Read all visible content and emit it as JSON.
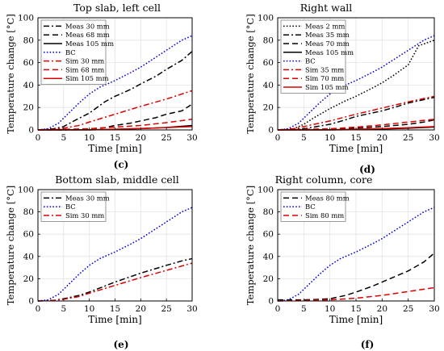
{
  "chart_data": [
    {
      "type": "line",
      "title": "Top slab, left cell",
      "subcaption": "(c)",
      "xlabel": "Time [min]",
      "ylabel": "Temperature change [°C]",
      "xlim": [
        0,
        30
      ],
      "ylim": [
        0,
        100
      ],
      "xticks": [
        "0",
        "5",
        "10",
        "15",
        "20",
        "25",
        "30"
      ],
      "yticks": [
        "0",
        "20",
        "40",
        "60",
        "80",
        "100"
      ],
      "grid": true,
      "legend": "top-left",
      "series": [
        {
          "name": "Meas 30 mm",
          "style": "dashdot",
          "color": "#000000",
          "x": [
            0,
            3,
            5,
            7,
            10,
            13,
            15,
            18,
            20,
            23,
            25,
            28,
            30
          ],
          "y": [
            0,
            1,
            3,
            8,
            15,
            25,
            30,
            36,
            41,
            48,
            54,
            62,
            70
          ]
        },
        {
          "name": "Meas 68 mm",
          "style": "dashed",
          "color": "#000000",
          "x": [
            0,
            5,
            10,
            13,
            15,
            18,
            20,
            23,
            25,
            28,
            30
          ],
          "y": [
            0,
            0,
            1,
            2,
            4,
            6,
            8,
            11,
            14,
            17,
            23
          ]
        },
        {
          "name": "Meas 105 mm",
          "style": "solid",
          "color": "#000000",
          "x": [
            0,
            10,
            15,
            20,
            25,
            28,
            30
          ],
          "y": [
            0,
            0,
            0.5,
            1.2,
            2.2,
            3.2,
            4
          ]
        },
        {
          "name": "BC",
          "style": "dotted",
          "color": "#0000dd",
          "x": [
            0,
            2,
            4,
            6,
            8,
            10,
            12,
            15,
            18,
            20,
            22,
            25,
            28,
            30
          ],
          "y": [
            0,
            1,
            6,
            15,
            24,
            32,
            38,
            44,
            51,
            56,
            62,
            71,
            80,
            84
          ]
        },
        {
          "name": "Sim 30 mm",
          "style": "dashdot",
          "color": "#dd0000",
          "x": [
            0,
            3,
            5,
            8,
            10,
            15,
            20,
            25,
            30
          ],
          "y": [
            0,
            0.5,
            1.5,
            4,
            7,
            14,
            21,
            27.5,
            35
          ]
        },
        {
          "name": "Sim 68 mm",
          "style": "dashed",
          "color": "#dd0000",
          "x": [
            0,
            10,
            15,
            20,
            25,
            30
          ],
          "y": [
            0,
            1,
            2.5,
            4,
            6.5,
            9.5
          ]
        },
        {
          "name": "Sim 105 mm",
          "style": "solid",
          "color": "#dd0000",
          "x": [
            0,
            10,
            15,
            20,
            25,
            30
          ],
          "y": [
            0,
            0.2,
            0.6,
            1.3,
            2.1,
            3
          ]
        }
      ]
    },
    {
      "type": "line",
      "title": "Right wall",
      "subcaption": "(d)",
      "xlabel": "Time [min]",
      "ylabel": "Temperature change [°C]",
      "xlim": [
        0,
        30
      ],
      "ylim": [
        0,
        100
      ],
      "xticks": [
        "0",
        "5",
        "10",
        "15",
        "20",
        "25",
        "30"
      ],
      "yticks": [
        "0",
        "20",
        "40",
        "60",
        "80",
        "100"
      ],
      "grid": true,
      "legend": "top-left",
      "series": [
        {
          "name": "Meas 2 mm",
          "style": "dotted",
          "color": "#000000",
          "x": [
            0,
            3,
            5,
            7,
            10,
            13,
            15,
            18,
            20,
            22,
            25,
            27,
            30
          ],
          "y": [
            0,
            1,
            5,
            11,
            19,
            26,
            30,
            37,
            42,
            48,
            58,
            75,
            80
          ]
        },
        {
          "name": "Meas 35 mm",
          "style": "dashdot",
          "color": "#000000",
          "x": [
            0,
            5,
            10,
            13,
            15,
            18,
            20,
            23,
            25,
            28,
            30
          ],
          "y": [
            0,
            1,
            5,
            9,
            12,
            15,
            17,
            21,
            24,
            27,
            29
          ]
        },
        {
          "name": "Meas 70 mm",
          "style": "dashed",
          "color": "#000000",
          "x": [
            0,
            10,
            15,
            20,
            25,
            28,
            30
          ],
          "y": [
            0,
            0.5,
            1.5,
            3,
            5,
            7,
            9
          ]
        },
        {
          "name": "Meas 105 mm",
          "style": "solid",
          "color": "#000000",
          "x": [
            0,
            10,
            15,
            20,
            25,
            30
          ],
          "y": [
            0,
            0,
            0.3,
            0.8,
            1.5,
            2.5
          ]
        },
        {
          "name": "BC",
          "style": "dotted",
          "color": "#0000dd",
          "x": [
            0,
            2,
            4,
            6,
            8,
            10,
            12,
            15,
            18,
            20,
            22,
            25,
            28,
            30
          ],
          "y": [
            0,
            1,
            6,
            15,
            24,
            32,
            38,
            44,
            51,
            56,
            62,
            71,
            80,
            84
          ]
        },
        {
          "name": "Sim 35 mm",
          "style": "dashdot",
          "color": "#dd0000",
          "x": [
            0,
            3,
            5,
            10,
            15,
            20,
            25,
            30
          ],
          "y": [
            0,
            1,
            3,
            8,
            14,
            19.5,
            25,
            30
          ]
        },
        {
          "name": "Sim 70 mm",
          "style": "dashed",
          "color": "#dd0000",
          "x": [
            0,
            10,
            15,
            20,
            25,
            30
          ],
          "y": [
            0,
            1,
            2.5,
            4.5,
            7,
            9.5
          ]
        },
        {
          "name": "Sim 105 mm",
          "style": "solid",
          "color": "#dd0000",
          "x": [
            0,
            10,
            15,
            20,
            25,
            30
          ],
          "y": [
            0,
            0.2,
            0.6,
            1.2,
            2,
            3
          ]
        }
      ]
    },
    {
      "type": "line",
      "title": "Bottom slab, middle cell",
      "subcaption": "(e)",
      "xlabel": "Time [min]",
      "ylabel": "Temperature change [°C]",
      "xlim": [
        0,
        30
      ],
      "ylim": [
        0,
        100
      ],
      "xticks": [
        "0",
        "5",
        "10",
        "15",
        "20",
        "25",
        "30"
      ],
      "yticks": [
        "0",
        "20",
        "40",
        "60",
        "80",
        "100"
      ],
      "grid": true,
      "legend": "top-left",
      "series": [
        {
          "name": "Meas 30 mm",
          "style": "dashdot",
          "color": "#000000",
          "x": [
            0,
            3,
            5,
            8,
            10,
            15,
            20,
            25,
            28,
            30
          ],
          "y": [
            0,
            0.5,
            2,
            5,
            8,
            17,
            25,
            32,
            36,
            38
          ]
        },
        {
          "name": "BC",
          "style": "dotted",
          "color": "#0000dd",
          "x": [
            0,
            2,
            4,
            6,
            8,
            10,
            12,
            15,
            18,
            20,
            22,
            25,
            28,
            30
          ],
          "y": [
            0,
            1,
            6,
            15,
            24,
            32,
            38,
            44,
            51,
            56,
            62,
            71,
            80,
            84
          ]
        },
        {
          "name": "Sim 30 mm",
          "style": "dashdot",
          "color": "#dd0000",
          "x": [
            0,
            3,
            5,
            8,
            10,
            15,
            20,
            25,
            30
          ],
          "y": [
            0,
            0.5,
            1.5,
            4,
            7,
            14,
            21,
            27.5,
            34
          ]
        }
      ]
    },
    {
      "type": "line",
      "title": "Right column, core",
      "subcaption": "(f)",
      "xlabel": "Time [min]",
      "ylabel": "Temperature change [°C]",
      "xlim": [
        0,
        30
      ],
      "ylim": [
        0,
        100
      ],
      "xticks": [
        "0",
        "5",
        "10",
        "15",
        "20",
        "25",
        "30"
      ],
      "yticks": [
        "0",
        "20",
        "40",
        "60",
        "80",
        "100"
      ],
      "grid": true,
      "legend": "top-left",
      "series": [
        {
          "name": "Meas 80 mm",
          "style": "dashed",
          "color": "#000000",
          "x": [
            0,
            5,
            8,
            10,
            13,
            15,
            18,
            20,
            22,
            25,
            28,
            30
          ],
          "y": [
            1,
            1,
            1.5,
            2,
            5,
            8,
            13,
            17,
            21,
            27,
            35,
            43
          ]
        },
        {
          "name": "BC",
          "style": "dotted",
          "color": "#0000dd",
          "x": [
            0,
            2,
            4,
            6,
            8,
            10,
            12,
            15,
            18,
            20,
            22,
            25,
            28,
            30
          ],
          "y": [
            0,
            1,
            6,
            15,
            24,
            32,
            38,
            44,
            51,
            56,
            62,
            71,
            80,
            84
          ]
        },
        {
          "name": "Sim 80 mm",
          "style": "dashed",
          "color": "#dd0000",
          "x": [
            0,
            10,
            15,
            20,
            25,
            30
          ],
          "y": [
            0,
            1,
            2.5,
            5,
            8.5,
            12
          ]
        }
      ]
    }
  ]
}
